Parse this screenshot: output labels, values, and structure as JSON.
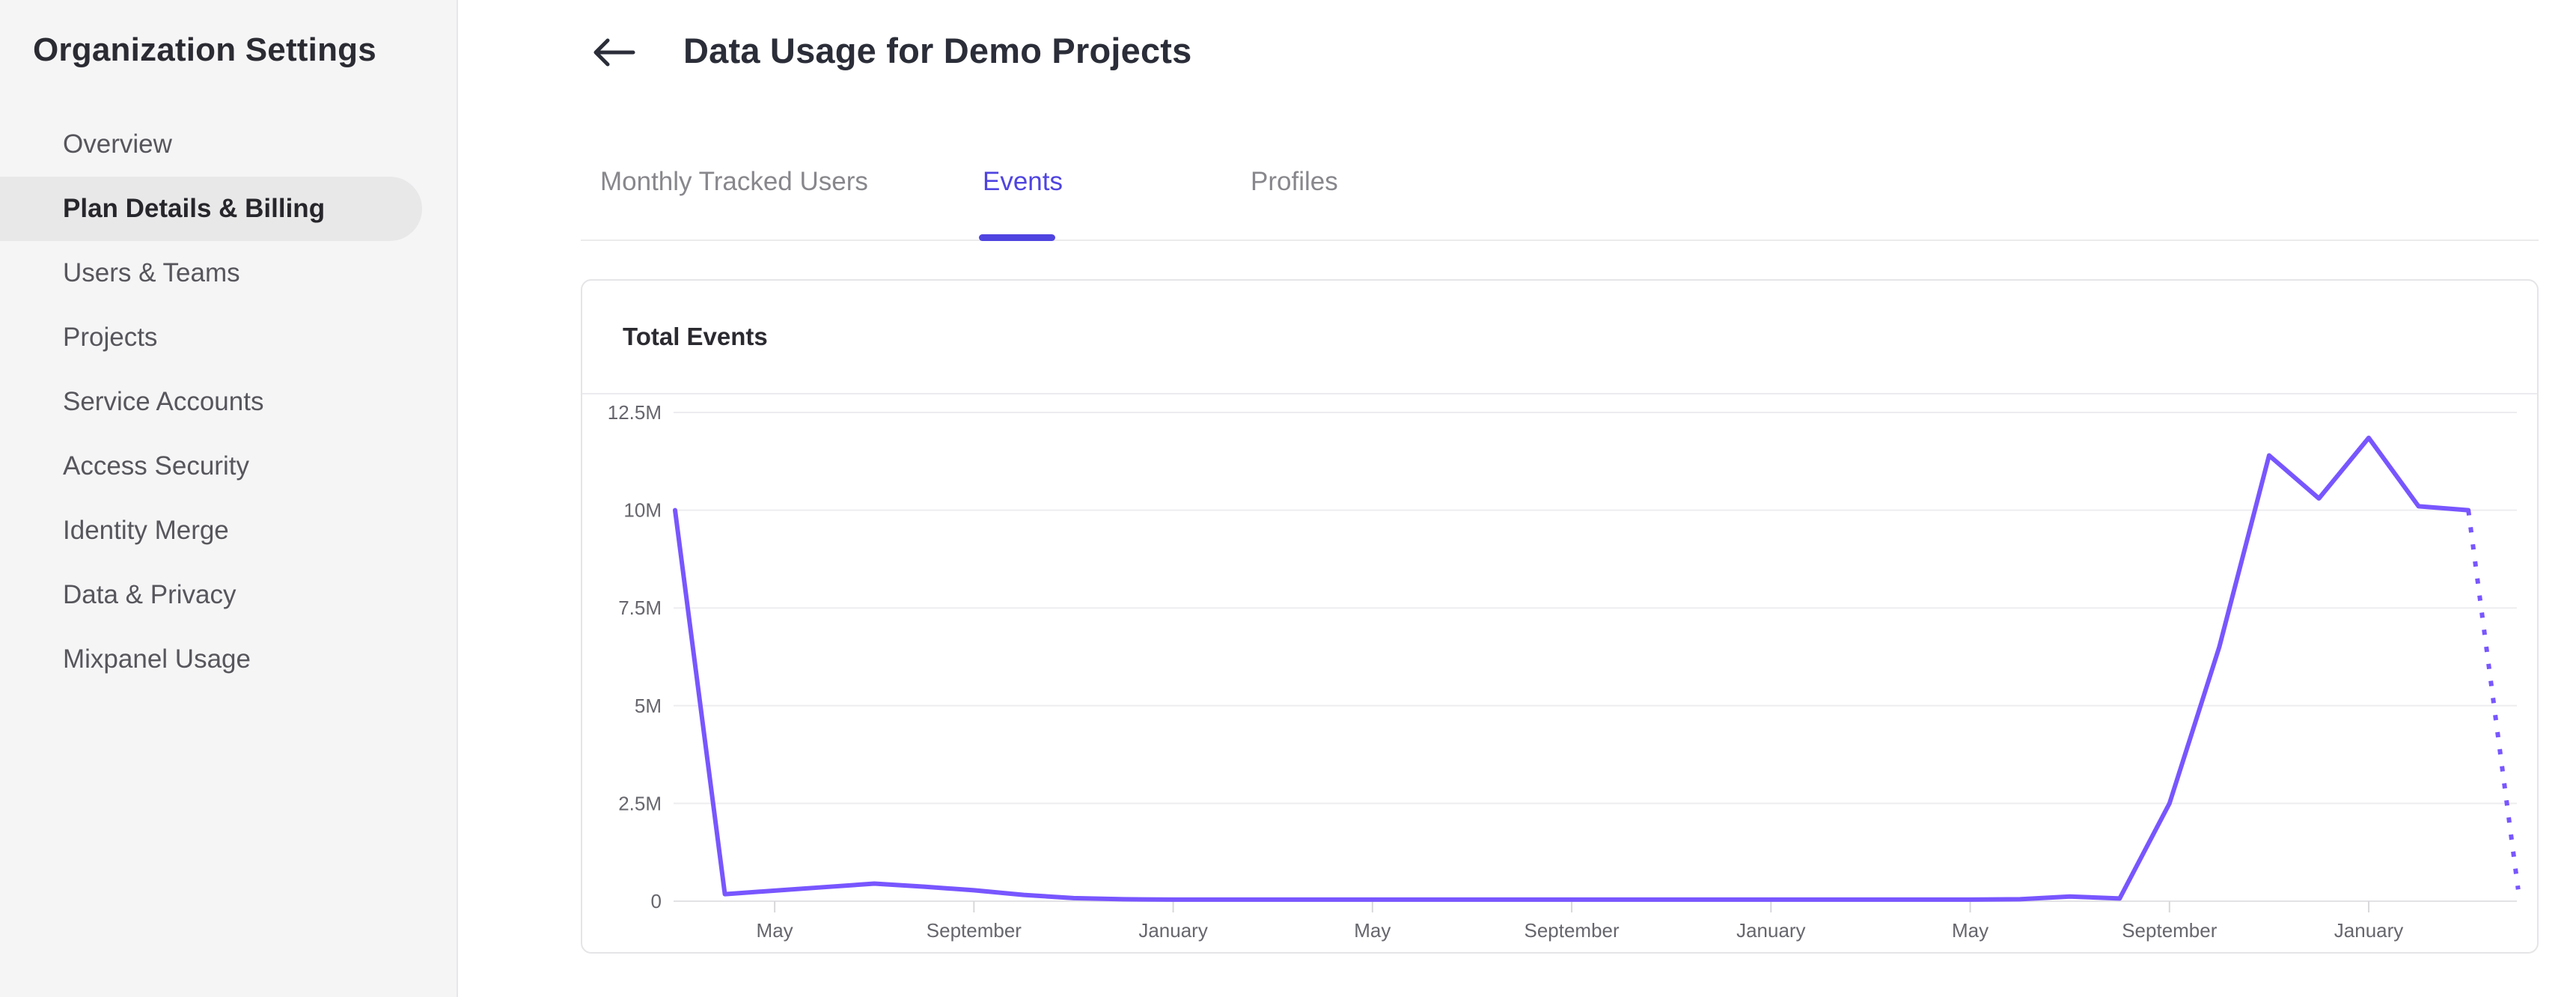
{
  "sidebar": {
    "title": "Organization Settings",
    "items": [
      {
        "label": "Overview",
        "active": false
      },
      {
        "label": "Plan Details & Billing",
        "active": true
      },
      {
        "label": "Users & Teams",
        "active": false
      },
      {
        "label": "Projects",
        "active": false
      },
      {
        "label": "Service Accounts",
        "active": false
      },
      {
        "label": "Access Security",
        "active": false
      },
      {
        "label": "Identity Merge",
        "active": false
      },
      {
        "label": "Data & Privacy",
        "active": false
      },
      {
        "label": "Mixpanel Usage",
        "active": false
      }
    ]
  },
  "header": {
    "title": "Data Usage for Demo Projects",
    "back_icon": "arrow-left"
  },
  "tabs": [
    {
      "label": "Monthly Tracked Users",
      "active": false
    },
    {
      "label": "Events",
      "active": true
    },
    {
      "label": "Profiles",
      "active": false
    }
  ],
  "card": {
    "title": "Total Events"
  },
  "colors": {
    "accent_purple": "#4f44e0",
    "line_purple": "#7856ff",
    "sidebar_bg": "#f5f5f6",
    "active_pill": "#e8e8e9",
    "grid_line": "#ededf0",
    "axis_text": "#66666d"
  },
  "chart_data": {
    "type": "line",
    "title": "Total Events",
    "unit": "events",
    "ylim_millions": [
      0,
      12.5
    ],
    "y_tick_values": [
      0,
      2.5,
      5,
      7.5,
      10,
      12.5
    ],
    "y_tick_labels": [
      "0",
      "2.5M",
      "5M",
      "7.5M",
      "10M",
      "12.5M"
    ],
    "x_tick_labels": [
      "May",
      "September",
      "January",
      "May",
      "September",
      "January",
      "May",
      "September",
      "January"
    ],
    "x_tick_indices": [
      2,
      6,
      10,
      14,
      18,
      22,
      26,
      30,
      34
    ],
    "n_points": 38,
    "values_millions": [
      10,
      0.18,
      0.27,
      0.36,
      0.45,
      0.37,
      0.28,
      0.16,
      0.08,
      0.05,
      0.04,
      0.04,
      0.04,
      0.04,
      0.04,
      0.04,
      0.04,
      0.04,
      0.04,
      0.04,
      0.04,
      0.04,
      0.04,
      0.04,
      0.04,
      0.04,
      0.04,
      0.05,
      0.12,
      0.07,
      2.5,
      6.5,
      11.4,
      10.3,
      11.85,
      10.1,
      10.0,
      0.3
    ],
    "last_segment_projected_dotted": true,
    "grid": true,
    "legend": "none",
    "line_color": "#7856ff"
  }
}
